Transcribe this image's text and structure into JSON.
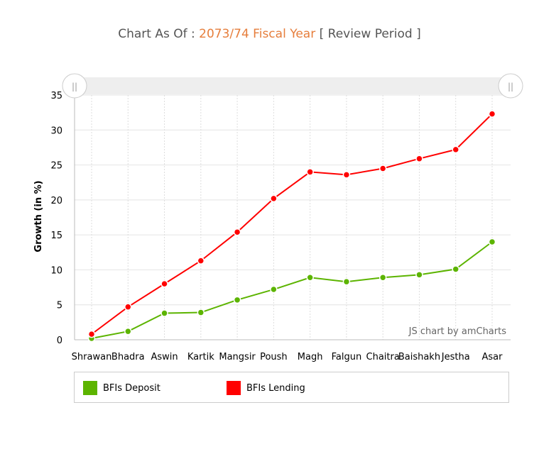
{
  "header": {
    "prefix": "Chart As Of : ",
    "period": "2073/74 Fiscal Year",
    "suffix": " [ Review Period ]"
  },
  "credit": "JS chart by amCharts",
  "scrollbar": {
    "left_grip_label": "||",
    "right_grip_label": "||"
  },
  "chart_data": {
    "type": "line",
    "ylabel": "Growth (in %)",
    "xlabel": "",
    "ylim": [
      0,
      35
    ],
    "yticks": [
      0,
      5,
      10,
      15,
      20,
      25,
      30,
      35
    ],
    "grid": true,
    "legend_position": "bottom",
    "categories": [
      "Shrawan",
      "Bhadra",
      "Aswin",
      "Kartik",
      "Mangsir",
      "Poush",
      "Magh",
      "Falgun",
      "Chaitra",
      "Baishakh",
      "Jestha",
      "Asar"
    ],
    "series": [
      {
        "name": "BFIs Deposit",
        "color": "#5cb400",
        "values": [
          0.2,
          1.2,
          3.8,
          3.9,
          5.7,
          7.2,
          8.9,
          8.3,
          8.9,
          9.3,
          10.1,
          14.0
        ]
      },
      {
        "name": "BFIs Lending",
        "color": "#ff0000",
        "values": [
          0.8,
          4.7,
          8.0,
          11.3,
          15.4,
          20.2,
          24.0,
          23.6,
          24.5,
          25.9,
          27.2,
          32.3
        ]
      }
    ]
  }
}
